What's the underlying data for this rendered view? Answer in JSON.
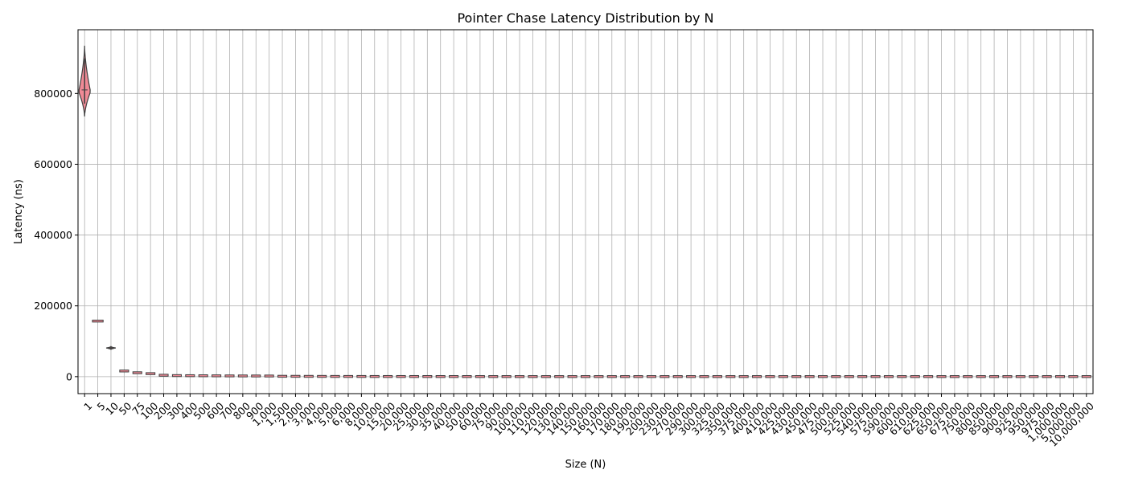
{
  "chart_data": {
    "type": "violin",
    "title": "Pointer Chase Latency Distribution by N",
    "xlabel": "Size (N)",
    "ylabel": "Latency (ns)",
    "ylim": [
      -48000,
      980000
    ],
    "yticks": [
      0,
      200000,
      400000,
      600000,
      800000
    ],
    "ytick_labels": [
      "0",
      "200000",
      "400000",
      "600000",
      "800000"
    ],
    "grid": true,
    "violin_color": "#f08a96",
    "categories": [
      "1",
      "5",
      "10",
      "50",
      "75",
      "100",
      "200",
      "300",
      "400",
      "500",
      "600",
      "700",
      "800",
      "900",
      "1,000",
      "1,500",
      "2,000",
      "3,000",
      "4,000",
      "5,000",
      "6,000",
      "8,000",
      "10,000",
      "15,000",
      "20,000",
      "25,000",
      "30,000",
      "35,000",
      "40,000",
      "50,000",
      "60,000",
      "75,000",
      "90,000",
      "100,000",
      "110,000",
      "120,000",
      "130,000",
      "140,000",
      "150,000",
      "160,000",
      "170,000",
      "180,000",
      "190,000",
      "200,000",
      "230,000",
      "270,000",
      "290,000",
      "300,000",
      "325,000",
      "350,000",
      "375,000",
      "400,000",
      "410,000",
      "425,000",
      "430,000",
      "450,000",
      "475,000",
      "500,000",
      "525,000",
      "540,000",
      "575,000",
      "590,000",
      "600,000",
      "610,000",
      "625,000",
      "650,000",
      "675,000",
      "750,000",
      "800,000",
      "850,000",
      "900,000",
      "925,000",
      "950,000",
      "975,000",
      "1,000,000",
      "5,000,000",
      "10,000,000"
    ],
    "medians": [
      810000,
      157000,
      81000,
      16000,
      11000,
      8500,
      4000,
      3000,
      2700,
      2500,
      2300,
      2100,
      2000,
      1900,
      1800,
      1000,
      900,
      800,
      700,
      600,
      550,
      500,
      450,
      400,
      380,
      360,
      340,
      320,
      300,
      280,
      260,
      240,
      220,
      200,
      200,
      200,
      200,
      200,
      200,
      200,
      200,
      200,
      200,
      200,
      200,
      200,
      200,
      200,
      200,
      200,
      200,
      200,
      200,
      200,
      200,
      200,
      200,
      200,
      200,
      200,
      200,
      200,
      200,
      200,
      200,
      200,
      200,
      200,
      200,
      200,
      200,
      200,
      200,
      200,
      200,
      200,
      200
    ],
    "lows": [
      735000,
      154000,
      77000,
      14500,
      10000,
      7800,
      3600,
      2700,
      2400,
      2200,
      2000,
      1900,
      1800,
      1700,
      1600,
      900,
      800,
      700,
      600,
      500,
      480,
      430,
      400,
      350,
      330,
      310,
      290,
      270,
      260,
      240,
      220,
      200,
      190,
      170,
      170,
      170,
      170,
      170,
      170,
      170,
      170,
      170,
      170,
      170,
      170,
      170,
      170,
      170,
      170,
      170,
      170,
      170,
      170,
      170,
      170,
      170,
      170,
      170,
      170,
      170,
      170,
      170,
      170,
      170,
      170,
      170,
      170,
      170,
      170,
      170,
      170,
      170,
      170,
      170,
      170,
      170,
      170
    ],
    "highs": [
      935000,
      159000,
      85000,
      17000,
      12000,
      9200,
      4400,
      3300,
      3000,
      2800,
      2600,
      2300,
      2200,
      2100,
      2000,
      1100,
      1000,
      900,
      800,
      700,
      620,
      570,
      500,
      450,
      430,
      410,
      390,
      370,
      340,
      320,
      300,
      280,
      250,
      230,
      230,
      230,
      230,
      230,
      230,
      230,
      230,
      230,
      230,
      230,
      230,
      230,
      230,
      230,
      230,
      230,
      230,
      230,
      230,
      230,
      230,
      230,
      230,
      230,
      230,
      230,
      230,
      230,
      230,
      230,
      230,
      230,
      230,
      230,
      230,
      230,
      230,
      230,
      230,
      230,
      230,
      230,
      230
    ],
    "widest_at": [
      805000,
      157000,
      81000,
      16000,
      11000,
      8500,
      4000,
      3000,
      2700,
      2500,
      2300,
      2100,
      2000,
      1900,
      1800,
      1000,
      900,
      800,
      700,
      600,
      550,
      500,
      450,
      400,
      380,
      360,
      340,
      320,
      300,
      280,
      260,
      240,
      220,
      200,
      200,
      200,
      200,
      200,
      200,
      200,
      200,
      200,
      200,
      200,
      200,
      200,
      200,
      200,
      200,
      200,
      200,
      200,
      200,
      200,
      200,
      200,
      200,
      200,
      200,
      200,
      200,
      200,
      200,
      200,
      200,
      200,
      200,
      200,
      200,
      200,
      200,
      200,
      200,
      200,
      200,
      200,
      200,
      200
    ]
  }
}
